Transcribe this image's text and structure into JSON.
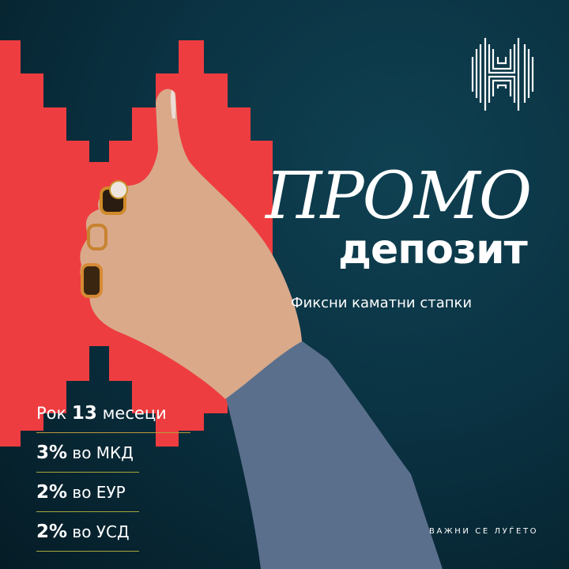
{
  "brand": {
    "logo": "halkbank-h-logo",
    "colors": {
      "red": "#ee3d40",
      "background": "#0a3242",
      "line": "#a9a53a"
    }
  },
  "headline": {
    "title": "ПРОМО",
    "subtitle": "депозит",
    "tagline": "Фиксни каматни стапки"
  },
  "term": {
    "prefix": "Рок",
    "value": "13",
    "suffix": "месеци"
  },
  "rates": [
    {
      "rate": "3%",
      "currency": "во МКД"
    },
    {
      "rate": "2%",
      "currency": "во ЕУР"
    },
    {
      "rate": "2%",
      "currency": "во УСД"
    }
  ],
  "slogan": "ВАЖНИ СЕ ЛУЃЕТО"
}
